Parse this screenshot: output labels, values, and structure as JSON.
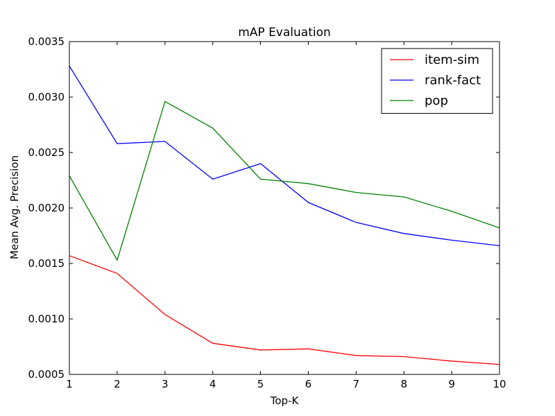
{
  "chart_data": {
    "type": "line",
    "title": "mAP Evaluation",
    "xlabel": "Top-K",
    "ylabel": "Mean Avg. Precision",
    "x": [
      1,
      2,
      3,
      4,
      5,
      6,
      7,
      8,
      9,
      10
    ],
    "xlim": [
      1,
      10
    ],
    "ylim": [
      0.0005,
      0.0035
    ],
    "x_ticks": [
      "1",
      "2",
      "3",
      "4",
      "5",
      "6",
      "7",
      "8",
      "9",
      "10"
    ],
    "y_ticks": [
      {
        "value": 0.0005,
        "label": "0.0005"
      },
      {
        "value": 0.001,
        "label": "0.0010"
      },
      {
        "value": 0.0015,
        "label": "0.0015"
      },
      {
        "value": 0.002,
        "label": "0.0020"
      },
      {
        "value": 0.0025,
        "label": "0.0025"
      },
      {
        "value": 0.003,
        "label": "0.0030"
      },
      {
        "value": 0.0035,
        "label": "0.0035"
      }
    ],
    "grid": false,
    "legend_position": "top-right",
    "series": [
      {
        "name": "item-sim",
        "color": "#ff0000",
        "values": [
          0.00157,
          0.00141,
          0.00104,
          0.00078,
          0.00072,
          0.00073,
          0.00067,
          0.00066,
          0.00062,
          0.00059
        ]
      },
      {
        "name": "rank-fact",
        "color": "#0000ff",
        "values": [
          0.00328,
          0.00258,
          0.0026,
          0.00226,
          0.0024,
          0.00205,
          0.00187,
          0.00177,
          0.00171,
          0.00166
        ]
      },
      {
        "name": "pop",
        "color": "#008000",
        "values": [
          0.00229,
          0.00153,
          0.00296,
          0.00272,
          0.00226,
          0.00222,
          0.00214,
          0.0021,
          0.00197,
          0.00182
        ]
      }
    ]
  }
}
